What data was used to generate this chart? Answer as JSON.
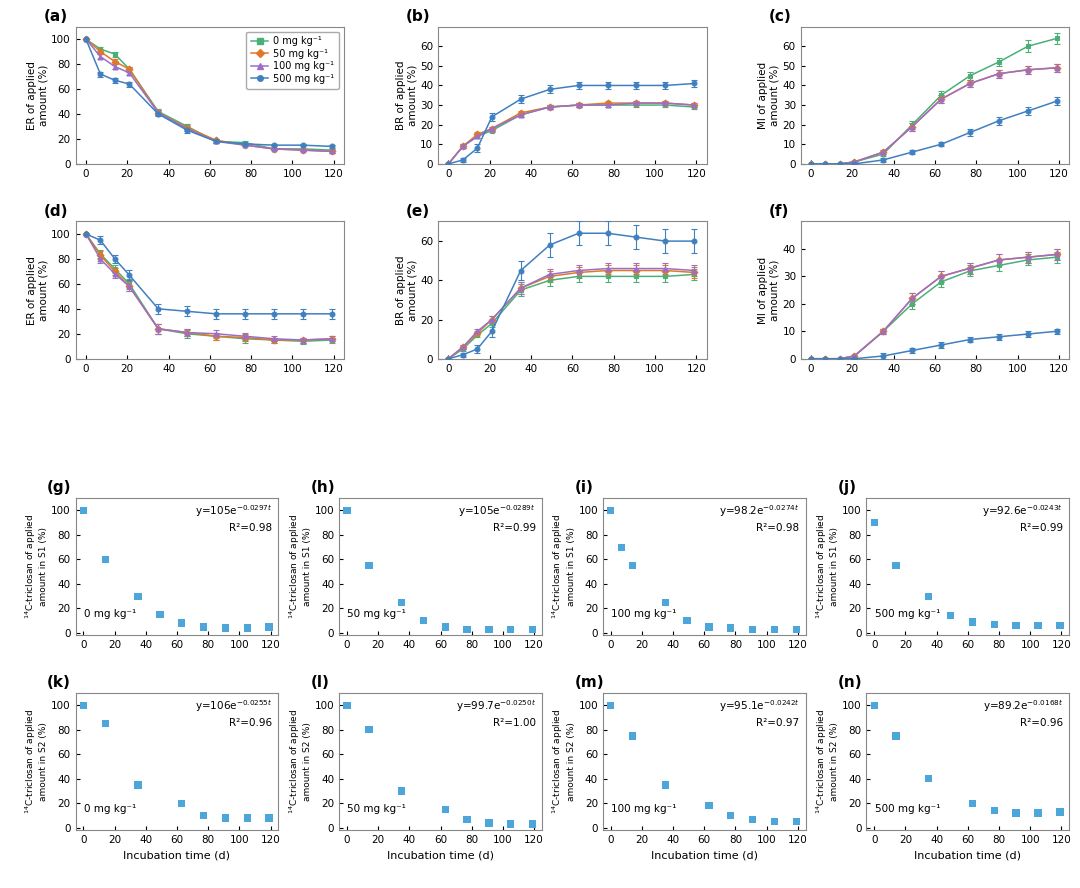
{
  "colors": [
    "#4caf78",
    "#e07828",
    "#9b6fc8",
    "#4080c0"
  ],
  "color_keys": [
    "green",
    "orange",
    "purple",
    "blue"
  ],
  "markers": [
    "s",
    "D",
    "^",
    "o"
  ],
  "legend_labels": [
    "0 mg kg⁻¹",
    "50 mg kg⁻¹",
    "100 mg kg⁻¹",
    "500 mg kg⁻¹"
  ],
  "x_common": [
    0,
    7,
    14,
    21,
    35,
    49,
    63,
    77,
    91,
    105,
    119
  ],
  "panel_a": {
    "label": "(a)",
    "ylabel": "ER of applied\namount (%)",
    "ylim": [
      0,
      110
    ],
    "yticks": [
      0,
      20,
      40,
      60,
      80,
      100
    ],
    "data": {
      "green": [
        100,
        92,
        88,
        76,
        42,
        30,
        18,
        17,
        12,
        12,
        11
      ],
      "orange": [
        100,
        90,
        82,
        76,
        41,
        29,
        19,
        15,
        12,
        11,
        10
      ],
      "purple": [
        100,
        86,
        78,
        73,
        41,
        28,
        18,
        15,
        12,
        11,
        10
      ],
      "blue": [
        100,
        72,
        67,
        64,
        40,
        27,
        18,
        16,
        15,
        15,
        14
      ]
    },
    "yerr": {
      "green": [
        0,
        2,
        2,
        2,
        2,
        2,
        1,
        1,
        1,
        1,
        1
      ],
      "orange": [
        0,
        2,
        2,
        2,
        2,
        2,
        1,
        1,
        1,
        1,
        1
      ],
      "purple": [
        0,
        2,
        2,
        2,
        2,
        2,
        1,
        1,
        1,
        1,
        1
      ],
      "blue": [
        0,
        2,
        2,
        2,
        2,
        2,
        1,
        1,
        1,
        1,
        1
      ]
    }
  },
  "panel_b": {
    "label": "(b)",
    "ylabel": "BR of applied\namount (%)",
    "ylim": [
      0,
      70
    ],
    "yticks": [
      0,
      10,
      20,
      30,
      40,
      50,
      60
    ],
    "data": {
      "green": [
        0,
        9,
        14,
        17,
        25,
        29,
        30,
        30,
        30,
        30,
        29
      ],
      "orange": [
        0,
        9,
        15,
        18,
        26,
        29,
        30,
        31,
        31,
        31,
        30
      ],
      "purple": [
        0,
        9,
        14,
        18,
        25,
        29,
        30,
        30,
        31,
        31,
        30
      ],
      "blue": [
        0,
        2,
        8,
        24,
        33,
        38,
        40,
        40,
        40,
        40,
        41
      ]
    },
    "yerr": {
      "green": [
        0,
        1,
        1,
        1,
        1,
        1,
        1,
        1,
        1,
        1,
        1
      ],
      "orange": [
        0,
        1,
        1,
        1,
        1,
        1,
        1,
        1,
        1,
        1,
        1
      ],
      "purple": [
        0,
        1,
        1,
        1,
        1,
        1,
        1,
        1,
        1,
        1,
        1
      ],
      "blue": [
        0,
        1,
        2,
        2,
        2,
        2,
        2,
        2,
        2,
        2,
        2
      ]
    }
  },
  "panel_c": {
    "label": "(c)",
    "ylabel": "MI of applied\namount (%)",
    "ylim": [
      0,
      70
    ],
    "yticks": [
      0,
      10,
      20,
      30,
      40,
      50,
      60
    ],
    "data": {
      "green": [
        0,
        0,
        0,
        1,
        5,
        20,
        35,
        45,
        52,
        60,
        64
      ],
      "orange": [
        0,
        0,
        0,
        1,
        6,
        19,
        33,
        41,
        46,
        48,
        49
      ],
      "purple": [
        0,
        0,
        0,
        1,
        6,
        19,
        33,
        41,
        46,
        48,
        49
      ],
      "blue": [
        0,
        0,
        0,
        0,
        2,
        6,
        10,
        16,
        22,
        27,
        32
      ]
    },
    "yerr": {
      "green": [
        0,
        0,
        0,
        0,
        1,
        2,
        2,
        2,
        2,
        3,
        3
      ],
      "orange": [
        0,
        0,
        0,
        0,
        1,
        2,
        2,
        2,
        2,
        2,
        2
      ],
      "purple": [
        0,
        0,
        0,
        0,
        1,
        2,
        2,
        2,
        2,
        2,
        2
      ],
      "blue": [
        0,
        0,
        0,
        0,
        1,
        1,
        1,
        2,
        2,
        2,
        2
      ]
    }
  },
  "panel_d": {
    "label": "(d)",
    "ylabel": "ER of applied\namount (%)",
    "ylim": [
      0,
      110
    ],
    "yticks": [
      0,
      20,
      40,
      60,
      80,
      100
    ],
    "data": {
      "green": [
        100,
        84,
        72,
        60,
        24,
        20,
        18,
        16,
        15,
        14,
        15
      ],
      "orange": [
        100,
        83,
        70,
        58,
        24,
        21,
        18,
        17,
        15,
        15,
        16
      ],
      "purple": [
        100,
        80,
        68,
        58,
        24,
        21,
        20,
        18,
        16,
        15,
        16
      ],
      "blue": [
        100,
        95,
        80,
        67,
        40,
        38,
        36,
        36,
        36,
        36,
        36
      ]
    },
    "yerr": {
      "green": [
        0,
        3,
        3,
        4,
        4,
        3,
        3,
        3,
        2,
        2,
        2
      ],
      "orange": [
        0,
        3,
        3,
        4,
        4,
        3,
        3,
        3,
        2,
        2,
        2
      ],
      "purple": [
        0,
        3,
        3,
        4,
        4,
        3,
        3,
        3,
        2,
        2,
        2
      ],
      "blue": [
        0,
        3,
        3,
        4,
        4,
        4,
        4,
        4,
        4,
        4,
        4
      ]
    }
  },
  "panel_e": {
    "label": "(e)",
    "ylabel": "BR of applied\namount (%)",
    "ylim": [
      0,
      70
    ],
    "yticks": [
      0,
      20,
      40,
      60
    ],
    "data": {
      "green": [
        0,
        5,
        12,
        18,
        35,
        40,
        42,
        42,
        42,
        42,
        43
      ],
      "orange": [
        0,
        6,
        13,
        20,
        36,
        42,
        44,
        45,
        45,
        45,
        44
      ],
      "purple": [
        0,
        6,
        14,
        20,
        36,
        43,
        45,
        46,
        46,
        46,
        45
      ],
      "blue": [
        0,
        2,
        5,
        14,
        45,
        58,
        64,
        64,
        62,
        60,
        60
      ]
    },
    "yerr": {
      "green": [
        0,
        1,
        1,
        2,
        3,
        3,
        3,
        3,
        3,
        3,
        3
      ],
      "orange": [
        0,
        1,
        1,
        2,
        3,
        3,
        3,
        3,
        3,
        3,
        3
      ],
      "purple": [
        0,
        1,
        1,
        2,
        3,
        3,
        3,
        3,
        3,
        3,
        3
      ],
      "blue": [
        0,
        1,
        2,
        3,
        5,
        6,
        6,
        6,
        6,
        6,
        6
      ]
    }
  },
  "panel_f": {
    "label": "(f)",
    "ylabel": "MI of applied\namount (%)",
    "ylim": [
      0,
      50
    ],
    "yticks": [
      0,
      10,
      20,
      30,
      40
    ],
    "data": {
      "green": [
        0,
        0,
        0,
        1,
        10,
        20,
        28,
        32,
        34,
        36,
        37
      ],
      "orange": [
        0,
        0,
        0,
        1,
        10,
        22,
        30,
        33,
        36,
        37,
        38
      ],
      "purple": [
        0,
        0,
        0,
        1,
        10,
        22,
        30,
        33,
        36,
        37,
        38
      ],
      "blue": [
        0,
        0,
        0,
        0,
        1,
        3,
        5,
        7,
        8,
        9,
        10
      ]
    },
    "yerr": {
      "green": [
        0,
        0,
        0,
        0,
        1,
        2,
        2,
        2,
        2,
        2,
        2
      ],
      "orange": [
        0,
        0,
        0,
        0,
        1,
        2,
        2,
        2,
        2,
        2,
        2
      ],
      "purple": [
        0,
        0,
        0,
        0,
        1,
        2,
        2,
        2,
        2,
        2,
        2
      ],
      "blue": [
        0,
        0,
        0,
        0,
        1,
        1,
        1,
        1,
        1,
        1,
        1
      ]
    }
  },
  "decay_panels": {
    "g": {
      "label": "(g)",
      "conc": "0 mg kg⁻¹",
      "eq_display": "y=105e$^{-0.0297t}$",
      "r2": "R²=0.98",
      "ylabel_s": "S1",
      "x": [
        0,
        14,
        35,
        49,
        63,
        77,
        91,
        105,
        119
      ],
      "y": [
        100,
        60,
        30,
        15,
        8,
        5,
        4,
        4,
        5
      ]
    },
    "h": {
      "label": "(h)",
      "conc": "50 mg kg⁻¹",
      "eq_display": "y=105e$^{-0.0289t}$",
      "r2": "R²=0.99",
      "ylabel_s": "S1",
      "x": [
        0,
        14,
        35,
        49,
        63,
        77,
        91,
        105,
        119
      ],
      "y": [
        100,
        55,
        25,
        10,
        5,
        3,
        3,
        3,
        3
      ]
    },
    "i": {
      "label": "(i)",
      "conc": "100 mg kg⁻¹",
      "eq_display": "y=98.2e$^{-0.0274t}$",
      "r2": "R²=0.98",
      "ylabel_s": "S1",
      "x": [
        0,
        7,
        14,
        35,
        49,
        63,
        77,
        91,
        105,
        119
      ],
      "y": [
        100,
        70,
        55,
        25,
        10,
        5,
        4,
        3,
        3,
        3
      ]
    },
    "j": {
      "label": "(j)",
      "conc": "500 mg kg⁻¹",
      "eq_display": "y=92.6e$^{-0.0243t}$",
      "r2": "R²=0.99",
      "ylabel_s": "S1",
      "x": [
        0,
        14,
        35,
        49,
        63,
        77,
        91,
        105,
        119
      ],
      "y": [
        90,
        55,
        30,
        14,
        9,
        7,
        6,
        6,
        6
      ]
    },
    "k": {
      "label": "(k)",
      "conc": "0 mg kg⁻¹",
      "eq_display": "y=106e$^{-0.0255t}$",
      "r2": "R²=0.96",
      "ylabel_s": "S2",
      "x": [
        0,
        14,
        35,
        63,
        77,
        91,
        105,
        119
      ],
      "y": [
        100,
        85,
        35,
        20,
        10,
        8,
        8,
        8
      ]
    },
    "l": {
      "label": "(l)",
      "conc": "50 mg kg⁻¹",
      "eq_display": "y=99.7e$^{-0.0250t}$",
      "r2": "R²=1.00",
      "ylabel_s": "S2",
      "x": [
        0,
        14,
        35,
        63,
        77,
        91,
        105,
        119
      ],
      "y": [
        100,
        80,
        30,
        15,
        7,
        4,
        3,
        3
      ]
    },
    "m": {
      "label": "(m)",
      "conc": "100 mg kg⁻¹",
      "eq_display": "y=95.1e$^{-0.0242t}$",
      "r2": "R²=0.97",
      "ylabel_s": "S2",
      "x": [
        0,
        14,
        35,
        63,
        77,
        91,
        105,
        119
      ],
      "y": [
        100,
        75,
        35,
        18,
        10,
        7,
        5,
        5
      ]
    },
    "n": {
      "label": "(n)",
      "conc": "500 mg kg⁻¹",
      "eq_display": "y=89.2e$^{-0.0168t}$",
      "r2": "R²=0.96",
      "ylabel_s": "S2",
      "x": [
        0,
        14,
        35,
        63,
        77,
        91,
        105,
        119
      ],
      "y": [
        100,
        75,
        40,
        20,
        14,
        12,
        12,
        13
      ]
    }
  },
  "bg_color": "#ffffff",
  "spine_color": "#888888"
}
